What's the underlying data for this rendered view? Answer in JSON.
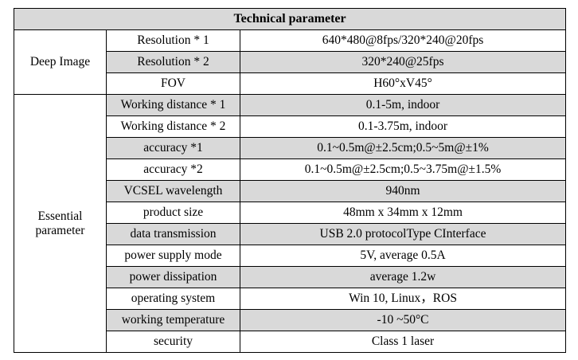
{
  "table": {
    "title": "Technical parameter",
    "groups": [
      {
        "label_lines": [
          "Deep Image"
        ],
        "rows": [
          {
            "param": "Resolution * 1",
            "value": "640*480@8fps/320*240@20fps",
            "shaded": false
          },
          {
            "param": "Resolution * 2",
            "value": "320*240@25fps",
            "shaded": true
          },
          {
            "param": "FOV",
            "value": "H60°xV45°",
            "shaded": false
          }
        ]
      },
      {
        "label_lines": [
          "Essential",
          "parameter"
        ],
        "rows": [
          {
            "param": "Working distance * 1",
            "value": "0.1-5m, indoor",
            "shaded": true
          },
          {
            "param": "Working distance * 2",
            "value": "0.1-3.75m, indoor",
            "shaded": false
          },
          {
            "param": "accuracy *1",
            "value": "0.1~0.5m@±2.5cm;0.5~5m@±1%",
            "shaded": true
          },
          {
            "param": "accuracy *2",
            "value": "0.1~0.5m@±2.5cm;0.5~3.75m@±1.5%",
            "shaded": false
          },
          {
            "param": "VCSEL wavelength",
            "value": "940nm",
            "shaded": true
          },
          {
            "param": "product size",
            "value": "48mm x 34mm x 12mm",
            "shaded": false
          },
          {
            "param": "data transmission",
            "value": "USB 2.0 protocolType CInterface",
            "shaded": true
          },
          {
            "param": "power supply mode",
            "value": "5V, average 0.5A",
            "shaded": false
          },
          {
            "param": "power dissipation",
            "value": "average 1.2w",
            "shaded": true
          },
          {
            "param": "operating system",
            "value": "Win 10, Linux，ROS",
            "shaded": false
          },
          {
            "param": "working temperature",
            "value": "-10 ~50°C",
            "shaded": true
          },
          {
            "param": "security",
            "value": "Class 1 laser",
            "shaded": false
          }
        ]
      }
    ]
  }
}
